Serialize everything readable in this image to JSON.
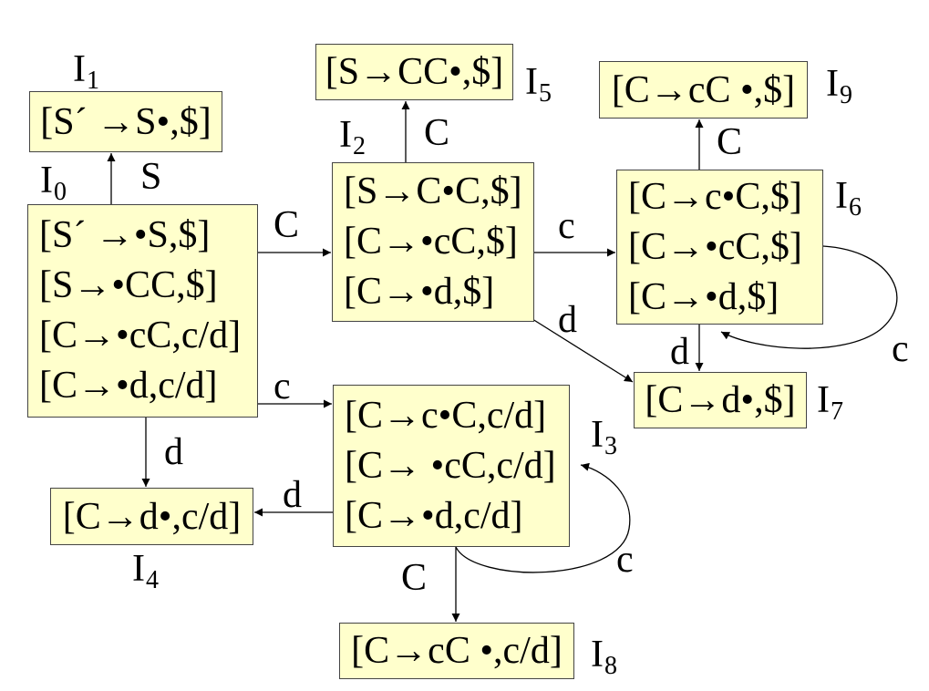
{
  "colors": {
    "box_fill": "#FFFFCC",
    "box_border": "#444444",
    "ink": "#000000"
  },
  "states": [
    {
      "label": {
        "main": "I",
        "sub": "0"
      },
      "items": [
        "[S´ →•S,$]",
        "[S→•CC,$]",
        "[C→•cC,c/d]",
        "[C→•d,c/d]"
      ]
    },
    {
      "label": {
        "main": "I",
        "sub": "1"
      },
      "items": [
        "[S´ →S•,$]"
      ]
    },
    {
      "label": {
        "main": "I",
        "sub": "2"
      },
      "items": [
        "[S→C•C,$]",
        "[C→•cC,$]",
        "[C→•d,$]"
      ]
    },
    {
      "label": {
        "main": "I",
        "sub": "3"
      },
      "items": [
        "[C→c•C,c/d]",
        "[C→ •cC,c/d]",
        "[C→•d,c/d]"
      ]
    },
    {
      "label": {
        "main": "I",
        "sub": "4"
      },
      "items": [
        "[C→d•,c/d]"
      ]
    },
    {
      "label": {
        "main": "I",
        "sub": "5"
      },
      "items": [
        "[S→CC•,$]"
      ]
    },
    {
      "label": {
        "main": "I",
        "sub": "6"
      },
      "items": [
        "[C→c•C,$]",
        "[C→•cC,$]",
        "[C→•d,$]"
      ]
    },
    {
      "label": {
        "main": "I",
        "sub": "7"
      },
      "items": [
        "[C→d•,$]"
      ]
    },
    {
      "label": {
        "main": "I",
        "sub": "8"
      },
      "items": [
        "[C→cC •,c/d]"
      ]
    },
    {
      "label": {
        "main": "I",
        "sub": "9"
      },
      "items": [
        "[C→cC •,$]"
      ]
    }
  ],
  "transitions": [
    {
      "from": 0,
      "to": 1,
      "symbol": "S"
    },
    {
      "from": 0,
      "to": 2,
      "symbol": "C"
    },
    {
      "from": 0,
      "to": 3,
      "symbol": "c"
    },
    {
      "from": 0,
      "to": 4,
      "symbol": "d"
    },
    {
      "from": 2,
      "to": 5,
      "symbol": "C"
    },
    {
      "from": 2,
      "to": 6,
      "symbol": "c"
    },
    {
      "from": 2,
      "to": 7,
      "symbol": "d"
    },
    {
      "from": 3,
      "to": 3,
      "symbol": "c"
    },
    {
      "from": 3,
      "to": 4,
      "symbol": "d"
    },
    {
      "from": 3,
      "to": 8,
      "symbol": "C"
    },
    {
      "from": 6,
      "to": 6,
      "symbol": "c"
    },
    {
      "from": 6,
      "to": 7,
      "symbol": "d"
    },
    {
      "from": 6,
      "to": 9,
      "symbol": "C"
    }
  ]
}
